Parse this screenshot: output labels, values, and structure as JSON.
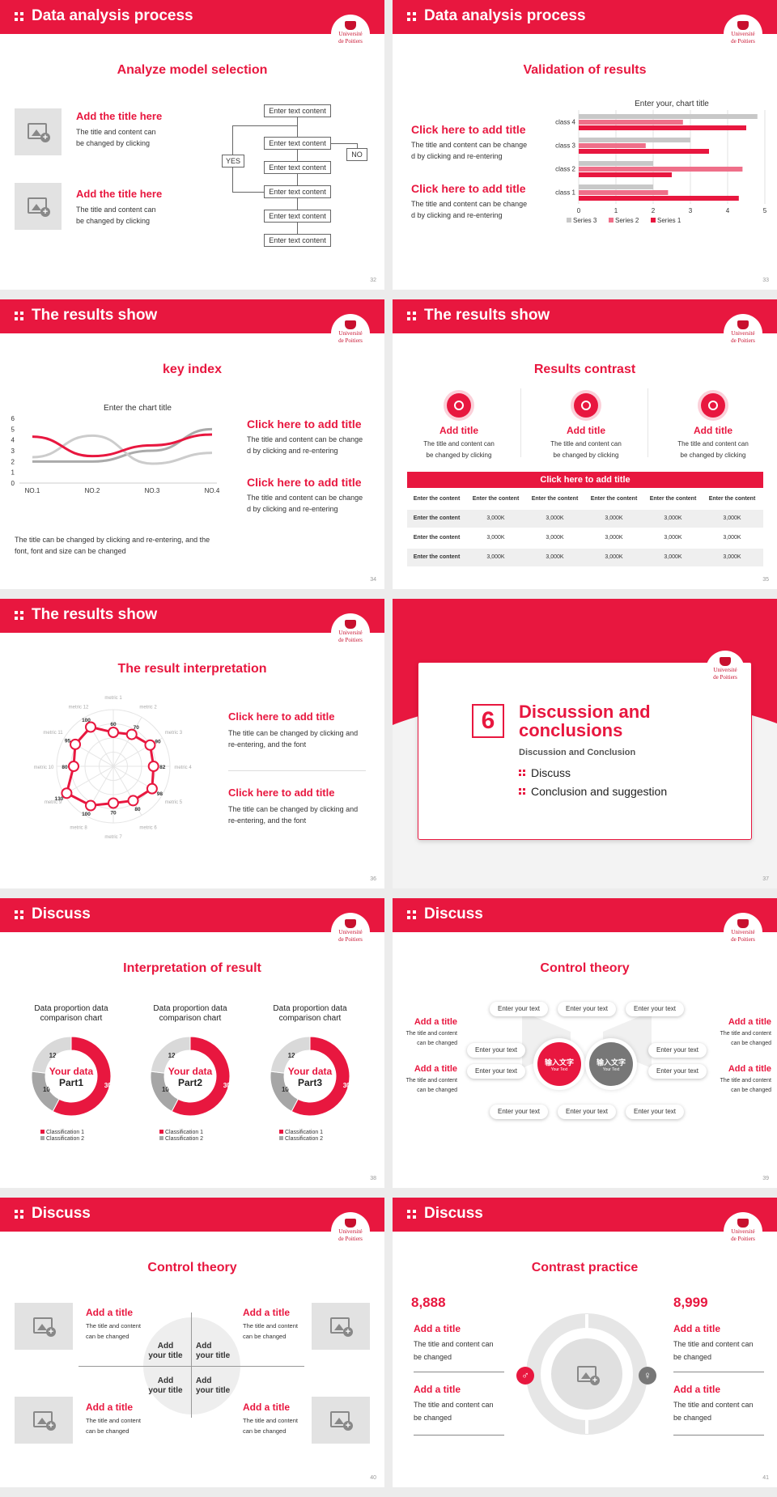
{
  "slides": [
    {
      "header": "Data analysis process",
      "title": "Analyze model selection",
      "page": "32",
      "items": [
        {
          "title": "Add the title here",
          "body": "The title and content can\nbe changed by clicking"
        },
        {
          "title": "Add the title here",
          "body": "The title and content can\nbe changed by clicking"
        }
      ],
      "flow": {
        "box": "Enter text content",
        "yes": "YES",
        "no": "NO"
      }
    },
    {
      "header": "Data analysis process",
      "title": "Validation of results",
      "page": "33",
      "items": [
        {
          "title": "Click here to add title",
          "body": "The title and content can be change\nd by clicking and re-entering"
        },
        {
          "title": "Click here to add title",
          "body": "The title and content can be change\nd by clicking and re-entering"
        }
      ]
    },
    {
      "header": "The results show",
      "title": "key index",
      "page": "34",
      "items": [
        {
          "title": "Click here to add title",
          "body": "The title and content can be change\nd by clicking and re-entering"
        },
        {
          "title": "Click here to add title",
          "body": "The title and content can be change\nd by clicking and re-entering"
        }
      ],
      "note": "The title can be changed by clicking and re-entering, and the\nfont, font and size can be changed"
    },
    {
      "header": "The results show",
      "title": "Results contrast",
      "page": "35",
      "cols": [
        {
          "title": "Add title",
          "body": "The title and content can\nbe changed by clicking"
        },
        {
          "title": "Add title",
          "body": "The title and content can\nbe changed by clicking"
        },
        {
          "title": "Add title",
          "body": "The title and content can\nbe changed by clicking"
        }
      ],
      "table": {
        "caption": "Click here to add title",
        "header": [
          "Enter the content",
          "Enter the content",
          "Enter the content",
          "Enter the content",
          "Enter the content",
          "Enter the content"
        ],
        "rows": [
          [
            "Enter the content",
            "3,000K",
            "3,000K",
            "3,000K",
            "3,000K",
            "3,000K"
          ],
          [
            "Enter the content",
            "3,000K",
            "3,000K",
            "3,000K",
            "3,000K",
            "3,000K"
          ],
          [
            "Enter the content",
            "3,000K",
            "3,000K",
            "3,000K",
            "3,000K",
            "3,000K"
          ]
        ]
      }
    },
    {
      "header": "The results show",
      "title": "The result interpretation",
      "page": "36",
      "items": [
        {
          "title": "Click here to add  title",
          "body": "The title can be changed by clicking and\nre-entering, and the font"
        },
        {
          "title": "Click here to add  title",
          "body": "The title can be changed by clicking and\nre-entering, and the font"
        }
      ]
    },
    {
      "page": "37",
      "section_number": "6",
      "section_title": "Discussion and\nconclusions",
      "section_sub": "Discussion and Conclusion",
      "bullets": [
        "Discuss",
        "Conclusion and suggestion"
      ]
    },
    {
      "header": "Discuss",
      "title": "Interpretation of result",
      "page": "38",
      "donuts": [
        {
          "caption": "Data proportion data\ncomparison chart",
          "center1": "Your data",
          "center2": "Part1"
        },
        {
          "caption": "Data proportion data\ncomparison chart",
          "center1": "Your data",
          "center2": "Part2"
        },
        {
          "caption": "Data proportion data\ncomparison chart",
          "center1": "Your data",
          "center2": "Part3"
        }
      ],
      "donut_legend": [
        "Classification 1",
        "Classification 2"
      ]
    },
    {
      "header": "Discuss",
      "title": "Control theory",
      "page": "39",
      "pill": "Enter your text",
      "circle1": "输入文字",
      "circle2": "输入文字",
      "circle_sub": "Your Text",
      "side": {
        "title": "Add a title",
        "body": "The title and content\ncan be changed"
      }
    },
    {
      "header": "Discuss",
      "title": "Control theory",
      "page": "40",
      "side": {
        "title": "Add a title",
        "body": "The title and content\ncan be changed"
      },
      "center": "Add\nyour title"
    },
    {
      "header": "Discuss",
      "title": "Contrast practice",
      "page": "41",
      "left_num": "8,888",
      "right_num": "8,999",
      "block": {
        "title": "Add a title",
        "body": "The title and content can\nbe changed"
      }
    }
  ],
  "logo_text": [
    "Université",
    "de Poitiers"
  ],
  "chart_data": [
    {
      "type": "bar",
      "orientation": "horizontal",
      "title": "Enter your, chart title",
      "categories": [
        "class 1",
        "class 2",
        "class 3",
        "class 4"
      ],
      "series": [
        {
          "name": "Series 3",
          "color": "#c8c8c8",
          "values": [
            2,
            2,
            3,
            4.8
          ]
        },
        {
          "name": "Series 2",
          "color": "#ef6f89",
          "values": [
            2.4,
            4.4,
            1.8,
            2.8
          ]
        },
        {
          "name": "Series 1",
          "color": "#e8173f",
          "values": [
            4.3,
            2.5,
            3.5,
            4.5
          ]
        }
      ],
      "xlim": [
        0,
        5
      ],
      "xticks": [
        "0",
        "1",
        "2",
        "3",
        "4",
        "5"
      ],
      "legend": "bottom",
      "grid": true
    },
    {
      "type": "line",
      "title": "Enter the chart title",
      "categories": [
        "NO.1",
        "NO.2",
        "NO.3",
        "NO.4"
      ],
      "series": [
        {
          "color": "#e8173f",
          "values": [
            4.3,
            2.5,
            3.5,
            4.5
          ]
        },
        {
          "color": "#cccccc",
          "values": [
            2.4,
            4.4,
            1.8,
            2.8
          ]
        },
        {
          "color": "#aaaaaa",
          "values": [
            2,
            2,
            3,
            5
          ]
        }
      ],
      "ylim": [
        0,
        6
      ],
      "yticks": [
        "0",
        "1",
        "2",
        "3",
        "4",
        "5",
        "6"
      ]
    },
    {
      "type": "radar",
      "axes": [
        "metric 1",
        "metric 2",
        "metric 3",
        "metric 4",
        "metric 5",
        "metric 6",
        "metric 7",
        "metric 8",
        "metric 9",
        "metric 10",
        "metric 11",
        "metric 12"
      ],
      "values": [
        60,
        70,
        90,
        82,
        98,
        80,
        70,
        100,
        130,
        80,
        95,
        100
      ],
      "max": 130
    },
    {
      "type": "pie",
      "values": [
        30,
        10,
        12
      ],
      "labels": [
        "30",
        "10",
        "12"
      ],
      "legend": [
        "Classification 1",
        "Classification 2"
      ]
    }
  ]
}
